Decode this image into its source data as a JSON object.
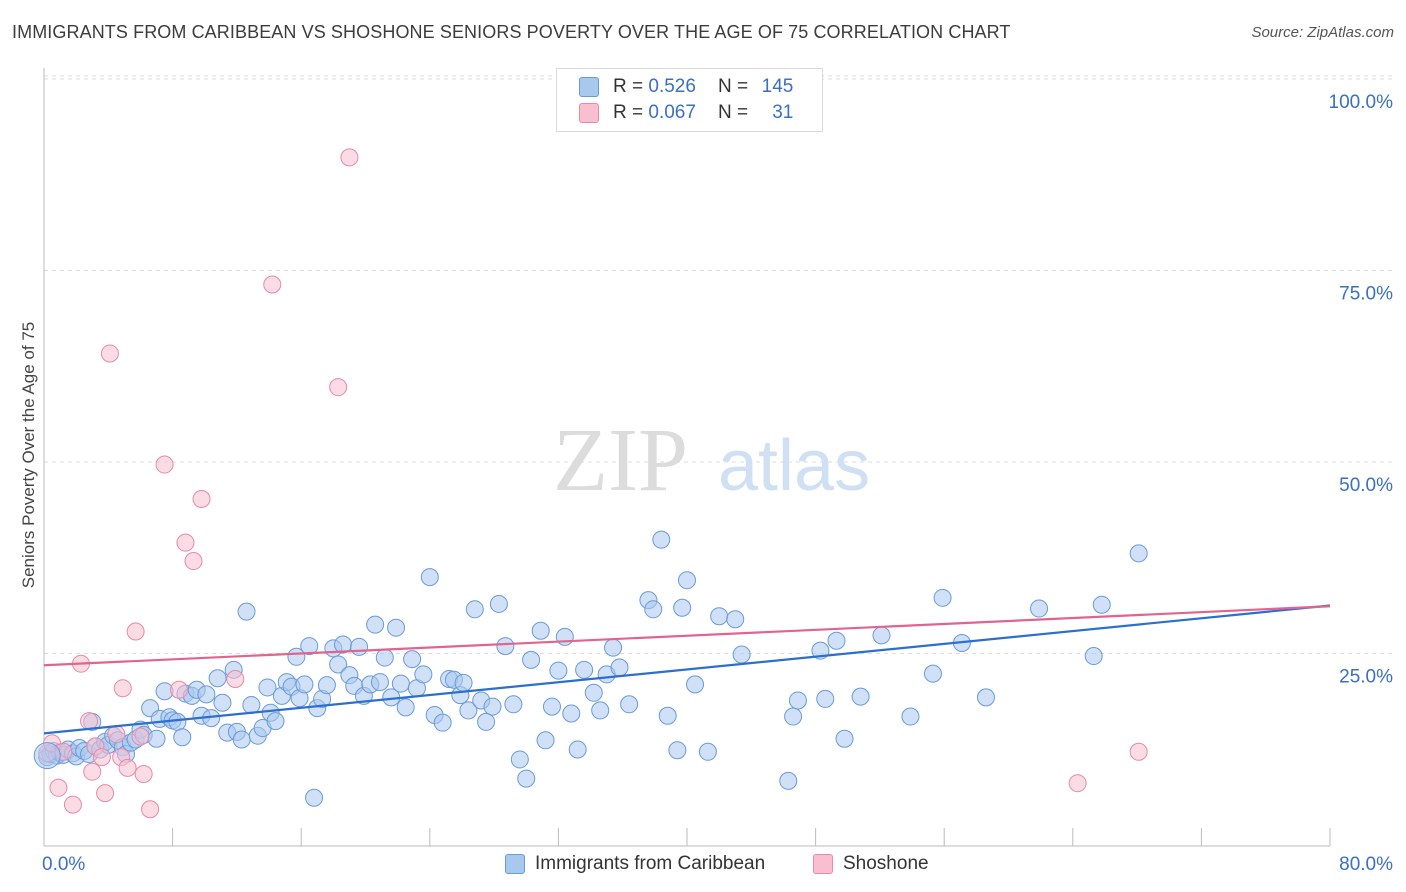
{
  "title": "IMMIGRANTS FROM CARIBBEAN VS SHOSHONE SENIORS POVERTY OVER THE AGE OF 75 CORRELATION CHART",
  "source": "Source: ZipAtlas.com",
  "watermark": {
    "zip": "ZIP",
    "atlas": "atlas"
  },
  "legend": {
    "rows": [
      {
        "r_label": "R =",
        "r_value": "0.526",
        "n_label": "N =",
        "n_value": "145"
      },
      {
        "r_label": "R =",
        "r_value": "0.067",
        "n_label": "N =",
        "n_value": "31"
      }
    ]
  },
  "colors": {
    "blue_fill": "#a9c8f0",
    "blue_stroke": "#6a9ad8",
    "blue_line": "#2b6fd0",
    "pink_fill": "#f7bfd0",
    "pink_stroke": "#e68aa8",
    "pink_line": "#e0648e",
    "axis_label": "#3a6fc4",
    "grid": "#dddddd"
  },
  "chart_data": {
    "type": "scatter",
    "ylabel": "Seniors Poverty Over the Age of 75",
    "xlim": [
      0,
      80
    ],
    "ylim": [
      0,
      100
    ],
    "x_tick_labels": [
      "0.0%",
      "80.0%"
    ],
    "y_tick_labels": [
      "25.0%",
      "50.0%",
      "75.0%",
      "100.0%"
    ],
    "y_ticks": [
      25,
      50,
      75,
      100
    ],
    "grid": true,
    "legend_position": "bottom",
    "series": [
      {
        "name": "Immigrants from Caribbean",
        "trend": {
          "x": [
            0,
            80
          ],
          "y": [
            14.7,
            31.4
          ]
        },
        "points": [
          [
            0.2,
            11.6
          ],
          [
            0.4,
            12.0
          ],
          [
            0.6,
            12.4
          ],
          [
            0.8,
            11.8
          ],
          [
            1.0,
            12.2
          ],
          [
            1.2,
            11.9
          ],
          [
            1.5,
            12.6
          ],
          [
            1.8,
            12.1
          ],
          [
            2.0,
            11.7
          ],
          [
            2.2,
            12.8
          ],
          [
            2.5,
            12.4
          ],
          [
            2.8,
            12.0
          ],
          [
            3.0,
            16.2
          ],
          [
            3.2,
            13.0
          ],
          [
            3.5,
            12.6
          ],
          [
            3.8,
            13.6
          ],
          [
            4.0,
            13.2
          ],
          [
            4.3,
            14.4
          ],
          [
            4.6,
            13.8
          ],
          [
            4.9,
            12.9
          ],
          [
            5.1,
            12.0
          ],
          [
            5.4,
            13.5
          ],
          [
            5.7,
            13.9
          ],
          [
            6.0,
            15.2
          ],
          [
            6.2,
            14.5
          ],
          [
            6.6,
            18.0
          ],
          [
            7.0,
            14.0
          ],
          [
            7.2,
            16.6
          ],
          [
            7.5,
            20.2
          ],
          [
            7.8,
            16.8
          ],
          [
            8.0,
            16.4
          ],
          [
            8.3,
            16.2
          ],
          [
            8.6,
            14.2
          ],
          [
            8.8,
            19.9
          ],
          [
            9.2,
            19.6
          ],
          [
            9.5,
            20.4
          ],
          [
            9.8,
            17.0
          ],
          [
            10.1,
            19.8
          ],
          [
            10.4,
            16.7
          ],
          [
            10.8,
            21.9
          ],
          [
            11.1,
            18.7
          ],
          [
            11.4,
            14.8
          ],
          [
            11.8,
            23.0
          ],
          [
            12.0,
            14.9
          ],
          [
            12.3,
            13.9
          ],
          [
            12.6,
            30.6
          ],
          [
            12.9,
            18.4
          ],
          [
            13.3,
            14.4
          ],
          [
            13.6,
            15.4
          ],
          [
            13.9,
            20.7
          ],
          [
            14.1,
            17.4
          ],
          [
            14.4,
            16.3
          ],
          [
            14.8,
            19.6
          ],
          [
            15.1,
            21.4
          ],
          [
            15.4,
            20.8
          ],
          [
            15.7,
            24.7
          ],
          [
            15.9,
            19.3
          ],
          [
            16.2,
            21.1
          ],
          [
            16.5,
            26.1
          ],
          [
            16.8,
            6.3
          ],
          [
            17.0,
            18.0
          ],
          [
            17.3,
            19.2
          ],
          [
            17.6,
            21.0
          ],
          [
            18.0,
            25.8
          ],
          [
            18.3,
            23.7
          ],
          [
            18.6,
            26.3
          ],
          [
            19.0,
            22.3
          ],
          [
            19.3,
            20.9
          ],
          [
            19.6,
            26.0
          ],
          [
            19.9,
            19.6
          ],
          [
            20.3,
            21.1
          ],
          [
            20.6,
            28.9
          ],
          [
            20.9,
            21.4
          ],
          [
            21.2,
            24.6
          ],
          [
            21.6,
            19.4
          ],
          [
            21.9,
            28.5
          ],
          [
            22.2,
            21.2
          ],
          [
            22.5,
            18.1
          ],
          [
            22.9,
            24.4
          ],
          [
            23.2,
            20.6
          ],
          [
            23.6,
            22.4
          ],
          [
            24.0,
            35.1
          ],
          [
            24.3,
            17.1
          ],
          [
            24.8,
            16.1
          ],
          [
            25.2,
            21.8
          ],
          [
            25.5,
            21.7
          ],
          [
            25.9,
            19.7
          ],
          [
            26.1,
            21.3
          ],
          [
            26.4,
            17.7
          ],
          [
            26.8,
            30.9
          ],
          [
            27.2,
            19.0
          ],
          [
            27.5,
            16.2
          ],
          [
            27.9,
            18.2
          ],
          [
            28.3,
            31.6
          ],
          [
            28.7,
            26.1
          ],
          [
            29.2,
            18.5
          ],
          [
            29.6,
            11.3
          ],
          [
            30.0,
            8.8
          ],
          [
            30.3,
            24.3
          ],
          [
            30.9,
            28.1
          ],
          [
            31.2,
            13.8
          ],
          [
            31.6,
            18.2
          ],
          [
            32.0,
            22.9
          ],
          [
            32.4,
            27.3
          ],
          [
            32.8,
            17.3
          ],
          [
            33.2,
            12.6
          ],
          [
            33.6,
            23.0
          ],
          [
            34.2,
            20.0
          ],
          [
            34.6,
            17.7
          ],
          [
            35.0,
            22.4
          ],
          [
            35.4,
            25.9
          ],
          [
            35.8,
            23.3
          ],
          [
            36.4,
            18.5
          ],
          [
            37.6,
            32.1
          ],
          [
            37.9,
            30.9
          ],
          [
            38.4,
            40.0
          ],
          [
            38.8,
            17.0
          ],
          [
            39.4,
            12.5
          ],
          [
            39.7,
            31.1
          ],
          [
            40.0,
            34.7
          ],
          [
            40.5,
            21.1
          ],
          [
            41.3,
            12.3
          ],
          [
            42.0,
            30.0
          ],
          [
            43.0,
            29.6
          ],
          [
            43.4,
            25.0
          ],
          [
            46.3,
            8.5
          ],
          [
            46.6,
            16.9
          ],
          [
            46.9,
            19.0
          ],
          [
            48.3,
            25.5
          ],
          [
            48.6,
            19.2
          ],
          [
            49.3,
            26.8
          ],
          [
            49.8,
            14.0
          ],
          [
            50.8,
            19.5
          ],
          [
            52.1,
            27.5
          ],
          [
            53.9,
            16.9
          ],
          [
            55.3,
            22.5
          ],
          [
            55.9,
            32.4
          ],
          [
            57.1,
            26.5
          ],
          [
            58.6,
            19.4
          ],
          [
            61.9,
            31.0
          ],
          [
            65.3,
            24.8
          ],
          [
            65.8,
            31.5
          ],
          [
            68.1,
            38.2
          ]
        ]
      },
      {
        "name": "Shoshone",
        "trend": {
          "x": [
            0,
            80
          ],
          "y": [
            23.6,
            31.3
          ]
        },
        "points": [
          [
            0.2,
            12.1
          ],
          [
            0.5,
            13.4
          ],
          [
            0.9,
            7.6
          ],
          [
            1.2,
            12.3
          ],
          [
            1.8,
            5.4
          ],
          [
            2.3,
            23.8
          ],
          [
            2.8,
            16.3
          ],
          [
            3.0,
            9.7
          ],
          [
            3.2,
            13.0
          ],
          [
            3.6,
            11.6
          ],
          [
            3.8,
            6.9
          ],
          [
            4.1,
            64.3
          ],
          [
            4.5,
            14.6
          ],
          [
            4.8,
            11.6
          ],
          [
            4.9,
            20.6
          ],
          [
            5.2,
            10.2
          ],
          [
            5.7,
            28.0
          ],
          [
            6.0,
            14.3
          ],
          [
            6.2,
            9.4
          ],
          [
            6.6,
            4.8
          ],
          [
            7.5,
            49.8
          ],
          [
            8.4,
            20.4
          ],
          [
            8.8,
            39.6
          ],
          [
            9.3,
            37.2
          ],
          [
            9.8,
            45.3
          ],
          [
            11.9,
            21.8
          ],
          [
            14.2,
            73.3
          ],
          [
            18.3,
            59.9
          ],
          [
            19.0,
            89.9
          ],
          [
            64.3,
            8.2
          ],
          [
            68.1,
            12.3
          ]
        ]
      }
    ]
  }
}
